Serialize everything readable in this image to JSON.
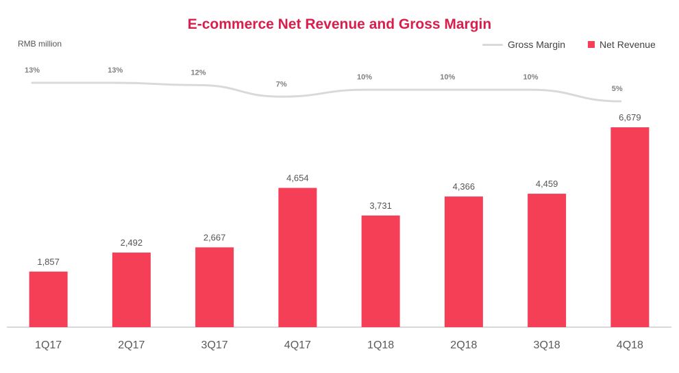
{
  "chart_data": {
    "type": "bar",
    "title": "E-commerce Net Revenue and Gross Margin",
    "unit_label": "RMB million",
    "categories": [
      "1Q17",
      "2Q17",
      "3Q17",
      "4Q17",
      "1Q18",
      "2Q18",
      "3Q18",
      "4Q18"
    ],
    "series": [
      {
        "name": "Net Revenue",
        "type": "bar",
        "color": "#f43f57",
        "values": [
          1857,
          2492,
          2667,
          4654,
          3731,
          4366,
          4459,
          6679
        ],
        "labels": [
          "1,857",
          "2,492",
          "2,667",
          "4,654",
          "3,731",
          "4,366",
          "4,459",
          "6,679"
        ]
      },
      {
        "name": "Gross Margin",
        "type": "line",
        "color": "#d9d9d9",
        "values": [
          13,
          13,
          12,
          7,
          10,
          10,
          10,
          5
        ],
        "labels": [
          "13%",
          "13%",
          "12%",
          "7%",
          "10%",
          "10%",
          "10%",
          "5%"
        ]
      }
    ],
    "legend": [
      "Gross Margin",
      "Net Revenue"
    ],
    "legend_position": "top-right",
    "ylim": [
      0,
      6679
    ],
    "grid": false
  }
}
